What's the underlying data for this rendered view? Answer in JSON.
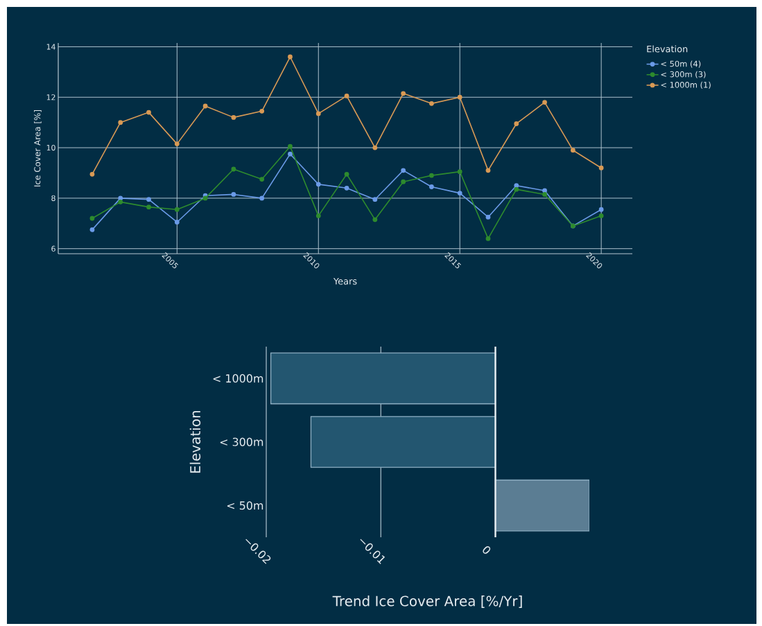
{
  "chart_data": [
    {
      "type": "line",
      "xlabel": "Years",
      "ylabel": "Ice Cover Area [%]",
      "legend_title": "Elevation",
      "legend": "top right",
      "grid": true,
      "marker": "circle",
      "line_style": "solid",
      "x": [
        2002,
        2003,
        2004,
        2005,
        2006,
        2007,
        2008,
        2009,
        2010,
        2011,
        2012,
        2013,
        2014,
        2015,
        2016,
        2017,
        2018,
        2019,
        2020
      ],
      "xlim": [
        2000.8,
        2021.1
      ],
      "xticks": [
        2005,
        2010,
        2015,
        2020
      ],
      "ylim": [
        5.8,
        14.15
      ],
      "yticks": [
        6,
        8,
        10,
        12,
        14
      ],
      "series": [
        {
          "name": "< 50m (4)",
          "color": "#6b9be8",
          "values": [
            6.75,
            8.0,
            7.95,
            7.05,
            8.1,
            8.15,
            8.0,
            9.75,
            8.55,
            8.4,
            7.95,
            9.1,
            8.45,
            8.2,
            7.25,
            8.5,
            8.3,
            6.9,
            7.55
          ]
        },
        {
          "name": "< 300m (3)",
          "color": "#2e8b2e",
          "values": [
            7.2,
            7.85,
            7.65,
            7.55,
            8.0,
            9.15,
            8.75,
            10.05,
            7.3,
            8.95,
            7.15,
            8.65,
            8.9,
            9.05,
            6.4,
            8.35,
            8.15,
            6.9,
            7.3
          ]
        },
        {
          "name": "< 1000m (1)",
          "color": "#d99a55",
          "values": [
            8.95,
            11.0,
            11.4,
            10.15,
            11.65,
            11.2,
            11.45,
            13.6,
            11.35,
            12.05,
            10.0,
            12.15,
            11.75,
            12.0,
            9.1,
            10.95,
            11.8,
            9.9,
            9.2
          ]
        }
      ]
    },
    {
      "type": "bar",
      "orientation": "horizontal",
      "xlabel": "Trend Ice Cover Area [%/Yr]",
      "ylabel": "Elevation",
      "grid": "x",
      "categories": [
        "< 1000m",
        "< 300m",
        "< 50m"
      ],
      "values": [
        -0.0196,
        -0.0161,
        0.0082
      ],
      "colors": [
        "#235670",
        "#235670",
        "#5b7d93"
      ],
      "xlim": [
        -0.02,
        0.0082
      ],
      "xticks": [
        {
          "value": -0.02,
          "label": "−0.02"
        },
        {
          "value": -0.01,
          "label": "−0.01"
        },
        0
      ]
    }
  ]
}
